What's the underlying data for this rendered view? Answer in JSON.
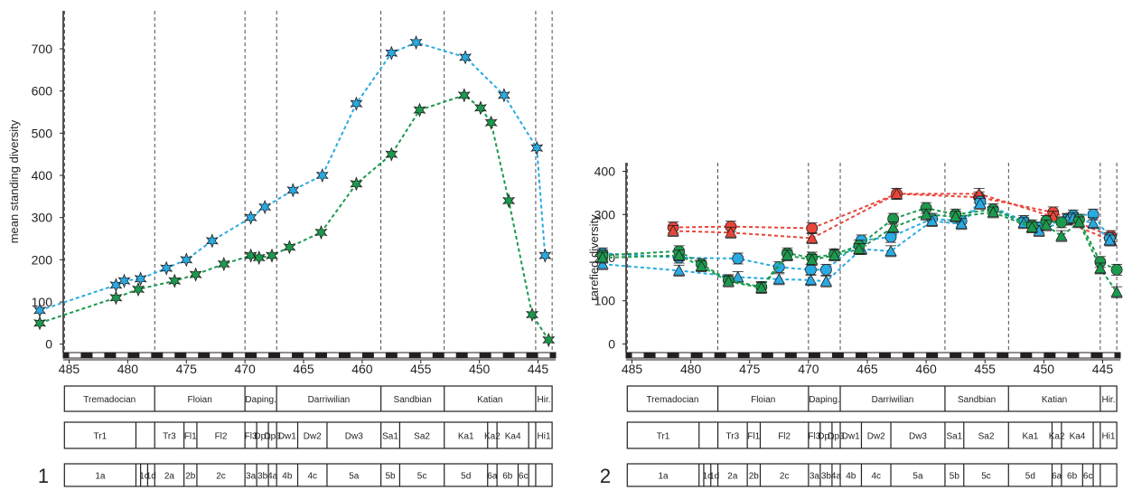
{
  "chart_data": [
    {
      "type": "line",
      "ylabel": "mean standing diversity",
      "xlim": [
        485.5,
        443.5
      ],
      "ylim": [
        -20,
        790
      ],
      "xticks": [
        485,
        480,
        475,
        470,
        465,
        460,
        455,
        450,
        445
      ],
      "yticks": [
        0,
        100,
        200,
        300,
        400,
        500,
        600,
        700
      ],
      "panel_number": "1",
      "series": [
        {
          "color": "#29abe2",
          "marker": "star",
          "x": [
            487.5,
            481.0,
            480.3,
            478.9,
            476.7,
            475.0,
            472.8,
            469.5,
            468.3,
            465.9,
            463.4,
            460.5,
            457.5,
            455.4,
            451.2,
            447.9,
            445.1,
            444.4
          ],
          "y": [
            80,
            140,
            150,
            155,
            180,
            200,
            245,
            300,
            325,
            365,
            400,
            570,
            690,
            715,
            680,
            590,
            465,
            210
          ]
        },
        {
          "color": "#1b9a4e",
          "marker": "star",
          "x": [
            487.5,
            481.0,
            479.1,
            476.0,
            474.2,
            471.8,
            469.5,
            468.8,
            467.7,
            466.2,
            463.5,
            460.5,
            457.5,
            455.1,
            451.3,
            449.9,
            449.0,
            447.5,
            445.5,
            444.1
          ],
          "y": [
            50,
            110,
            130,
            150,
            165,
            190,
            210,
            205,
            210,
            230,
            265,
            380,
            450,
            555,
            590,
            560,
            525,
            340,
            70,
            10
          ]
        }
      ]
    },
    {
      "type": "line",
      "ylabel": "rarefied diversity",
      "xlim": [
        485.5,
        443.5
      ],
      "ylim": [
        -20,
        420
      ],
      "xticks": [
        485,
        480,
        475,
        470,
        465,
        460,
        455,
        450,
        445
      ],
      "yticks": [
        0,
        100,
        200,
        300,
        400
      ],
      "panel_number": "2",
      "series": [
        {
          "color": "#e8463a",
          "marker": "circle",
          "x": [
            481.5,
            476.6,
            469.7,
            462.5,
            455.5,
            449.2,
            444.3
          ],
          "y": [
            270,
            272,
            268,
            348,
            340,
            305,
            250
          ]
        },
        {
          "color": "#e8463a",
          "marker": "triangle",
          "x": [
            481.5,
            476.6,
            469.7,
            462.5,
            455.5,
            449.2,
            444.3
          ],
          "y": [
            262,
            258,
            245,
            348,
            348,
            295,
            240
          ]
        },
        {
          "color": "#29abe2",
          "marker": "circle",
          "x": [
            487.5,
            481.0,
            476.0,
            472.5,
            469.8,
            468.5,
            465.5,
            463.0,
            459.5,
            457.0,
            455.4,
            451.7,
            450.4,
            448.0,
            447.5,
            445.8,
            444.4
          ],
          "y": [
            210,
            200,
            198,
            178,
            172,
            172,
            240,
            248,
            290,
            285,
            330,
            285,
            270,
            290,
            298,
            300,
            245
          ]
        },
        {
          "color": "#29abe2",
          "marker": "triangle",
          "x": [
            487.5,
            481.0,
            476.0,
            472.5,
            469.8,
            468.5,
            465.5,
            463.0,
            459.5,
            457.0,
            455.4,
            451.7,
            450.4,
            448.0,
            447.5,
            445.8,
            444.4
          ],
          "y": [
            185,
            170,
            155,
            150,
            148,
            145,
            220,
            215,
            285,
            278,
            325,
            280,
            262,
            288,
            292,
            280,
            240
          ]
        },
        {
          "color": "#1b9a4e",
          "marker": "circle",
          "x": [
            487.5,
            481.0,
            479.1,
            476.8,
            474.0,
            471.8,
            469.7,
            467.8,
            465.7,
            462.8,
            460.0,
            457.5,
            454.3,
            451.0,
            449.8,
            448.5,
            447.0,
            445.2,
            443.8
          ],
          "y": [
            205,
            215,
            185,
            148,
            132,
            210,
            200,
            208,
            228,
            290,
            315,
            300,
            312,
            275,
            285,
            282,
            288,
            190,
            172
          ]
        },
        {
          "color": "#1b9a4e",
          "marker": "triangle",
          "x": [
            487.5,
            481.0,
            479.1,
            476.8,
            474.0,
            471.8,
            469.7,
            467.8,
            465.7,
            462.8,
            460.0,
            457.5,
            454.3,
            451.0,
            449.8,
            448.5,
            447.0,
            445.2,
            443.8
          ],
          "y": [
            200,
            205,
            180,
            145,
            130,
            205,
            195,
            205,
            220,
            270,
            300,
            295,
            305,
            270,
            275,
            250,
            282,
            175,
            120
          ]
        }
      ]
    }
  ],
  "boundaries": [
    485.4,
    477.7,
    470.0,
    467.3,
    458.4,
    453.0,
    445.2,
    443.8
  ],
  "stages": {
    "x": [
      485.4,
      477.7,
      470.0,
      467.3,
      458.4,
      453.0,
      445.2,
      443.8
    ],
    "labels": [
      "Tremadocian",
      "Floian",
      "Daping.",
      "Darriwilian",
      "Sandbian",
      "Katian",
      "Hir."
    ]
  },
  "slices": {
    "x": [
      485.4,
      479.3,
      477.7,
      475.2,
      474.1,
      470.0,
      469.0,
      468.0,
      467.3,
      465.5,
      463.0,
      458.4,
      456.8,
      453.0,
      449.3,
      448.5,
      445.8,
      445.2,
      443.8
    ],
    "labels": [
      "Tr1",
      "",
      "Tr3",
      "Fl1",
      "Fl2",
      "Fl3",
      "Dp1",
      "Dp3",
      "Dw1",
      "Dw2",
      "Dw3",
      "Sa1",
      "Sa2",
      "Ka1",
      "Ka2",
      "Ka4",
      "",
      "Hi1"
    ]
  },
  "substages": {
    "x": [
      485.4,
      479.3,
      478.9,
      478.3,
      477.7,
      475.2,
      474.1,
      470.0,
      469.0,
      468.0,
      467.3,
      465.5,
      463.0,
      458.4,
      456.8,
      453.0,
      449.3,
      448.5,
      446.7,
      445.8,
      445.2,
      443.8
    ],
    "labels": [
      "1a",
      "",
      "1c",
      "1d",
      "2a",
      "2b",
      "2c",
      "3a",
      "3b",
      "4a",
      "4b",
      "4c",
      "5a",
      "5b",
      "5c",
      "5d",
      "6a",
      "6b",
      "6c",
      "",
      ""
    ]
  }
}
